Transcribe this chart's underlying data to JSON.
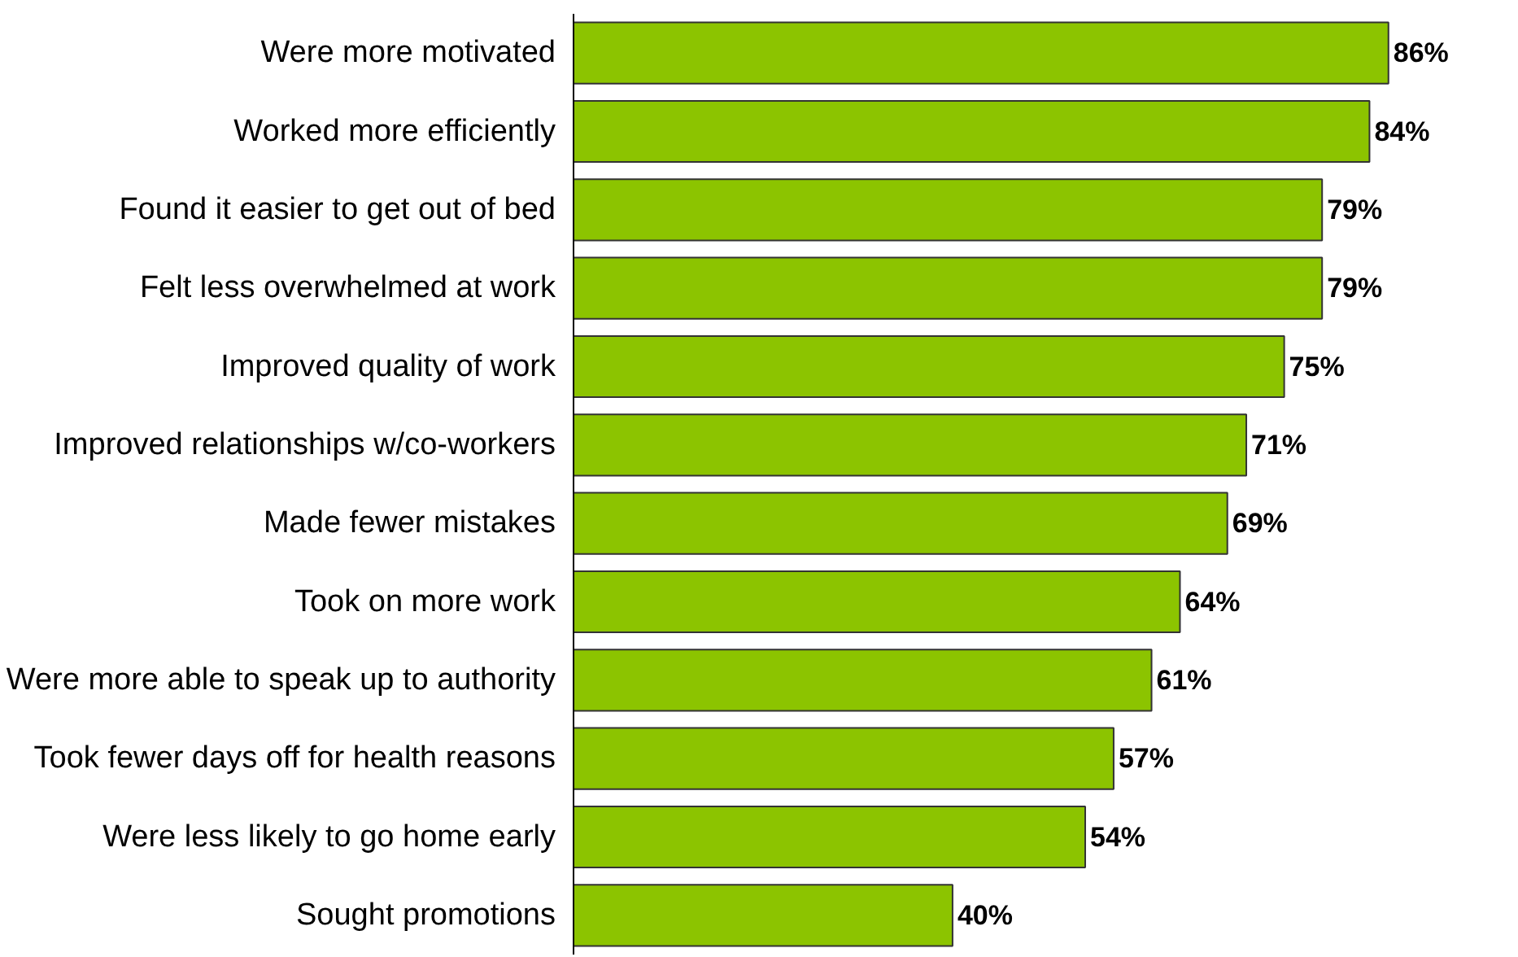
{
  "chart_data": {
    "type": "bar",
    "orientation": "horizontal",
    "categories": [
      "Were more motivated",
      "Worked more efficiently",
      "Found it easier to get out of bed",
      "Felt less overwhelmed at work",
      "Improved quality of work",
      "Improved relationships w/co-workers",
      "Made fewer mistakes",
      "Took on more work",
      "Were more able to speak up to authority",
      "Took fewer days off for health reasons",
      "Were less likely to go home early",
      "Sought promotions"
    ],
    "values": [
      86,
      84,
      79,
      79,
      75,
      71,
      69,
      64,
      61,
      57,
      54,
      40
    ],
    "value_labels": [
      "86%",
      "84%",
      "79%",
      "79%",
      "75%",
      "71%",
      "69%",
      "64%",
      "61%",
      "57%",
      "54%",
      "40%"
    ],
    "color": "#8cc400",
    "grid": false
  }
}
